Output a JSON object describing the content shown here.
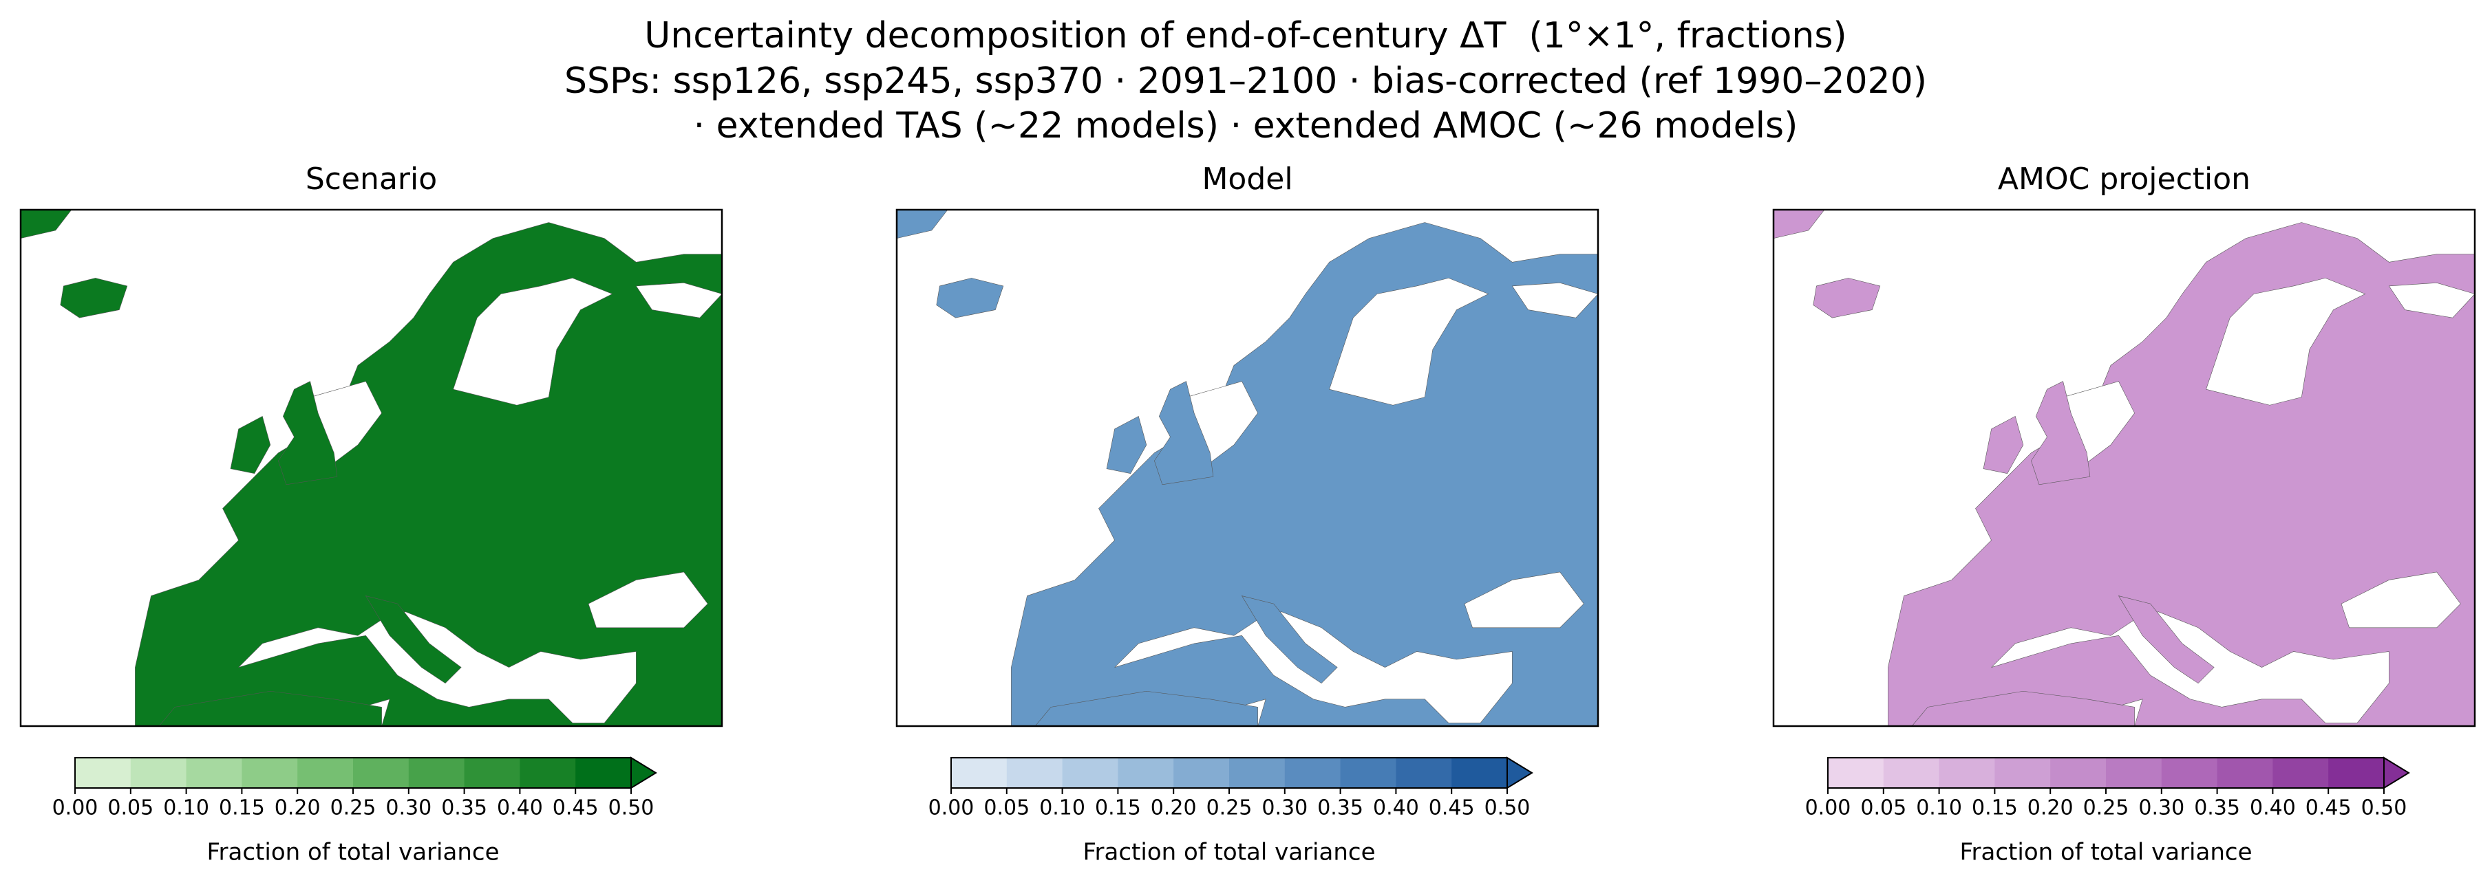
{
  "title": [
    "Uncertainty decomposition of end-of-century ΔT  (1°×1°, fractions)",
    "SSPs: ssp126, ssp245, ssp370 · 2091–2100 · bias-corrected (ref 1990–2020)",
    "· extended TAS (~22 models) · extended AMOC (~26 models)"
  ],
  "chart_data": [
    {
      "type": "map",
      "title": "Scenario",
      "land_color": "#0b7a20",
      "colorbar": {
        "label": "Fraction of total variance",
        "clim": [
          0,
          0.5
        ],
        "extend": "max",
        "colors": [
          "#d7efd1",
          "#bfe5b9",
          "#a6d9a0",
          "#8ecc88",
          "#76bf72",
          "#5fb15e",
          "#47a24a",
          "#2f9237",
          "#178126",
          "#00701a"
        ],
        "ticks": [
          {
            "value": 0,
            "label": "0.00"
          },
          {
            "value": 0.05,
            "label": "0.05"
          },
          {
            "value": 0.1,
            "label": "0.10"
          },
          {
            "value": 0.15,
            "label": "0.15"
          },
          {
            "value": 0.2,
            "label": "0.20"
          },
          {
            "value": 0.25,
            "label": "0.25"
          },
          {
            "value": 0.3,
            "label": "0.30"
          },
          {
            "value": 0.35,
            "label": "0.35"
          },
          {
            "value": 0.4,
            "label": "0.40"
          },
          {
            "value": 0.45,
            "label": "0.45"
          },
          {
            "value": 0.5,
            "label": "0.50"
          }
        ]
      }
    },
    {
      "type": "map",
      "title": "Model",
      "land_color": "#6698c6",
      "colorbar": {
        "label": "Fraction of total variance",
        "clim": [
          0,
          0.5
        ],
        "extend": "max",
        "colors": [
          "#dae6f2",
          "#c7d9ec",
          "#b1cbe4",
          "#9abcdb",
          "#84acd2",
          "#6e9cc8",
          "#5a8cbf",
          "#467cb5",
          "#336aa9",
          "#1f5a9d"
        ],
        "ticks": [
          {
            "value": 0,
            "label": "0.00"
          },
          {
            "value": 0.05,
            "label": "0.05"
          },
          {
            "value": 0.1,
            "label": "0.10"
          },
          {
            "value": 0.15,
            "label": "0.15"
          },
          {
            "value": 0.2,
            "label": "0.20"
          },
          {
            "value": 0.25,
            "label": "0.25"
          },
          {
            "value": 0.3,
            "label": "0.30"
          },
          {
            "value": 0.35,
            "label": "0.35"
          },
          {
            "value": 0.4,
            "label": "0.40"
          },
          {
            "value": 0.45,
            "label": "0.45"
          },
          {
            "value": 0.5,
            "label": "0.50"
          }
        ]
      }
    },
    {
      "type": "map",
      "title": "AMOC projection",
      "land_color": "#cc97d1",
      "colorbar": {
        "label": "Fraction of total variance",
        "clim": [
          0,
          0.5
        ],
        "extend": "max",
        "colors": [
          "#ecd4ec",
          "#e2c2e4",
          "#d8b0dc",
          "#ce9fd4",
          "#c48dcb",
          "#b97bc2",
          "#ae68b8",
          "#a156ad",
          "#9343a2",
          "#842f97"
        ],
        "ticks": [
          {
            "value": 0,
            "label": "0.00"
          },
          {
            "value": 0.05,
            "label": "0.05"
          },
          {
            "value": 0.1,
            "label": "0.10"
          },
          {
            "value": 0.15,
            "label": "0.15"
          },
          {
            "value": 0.2,
            "label": "0.20"
          },
          {
            "value": 0.25,
            "label": "0.25"
          },
          {
            "value": 0.3,
            "label": "0.30"
          },
          {
            "value": 0.35,
            "label": "0.35"
          },
          {
            "value": 0.4,
            "label": "0.40"
          },
          {
            "value": 0.45,
            "label": "0.45"
          },
          {
            "value": 0.5,
            "label": "0.50"
          }
        ]
      }
    }
  ]
}
